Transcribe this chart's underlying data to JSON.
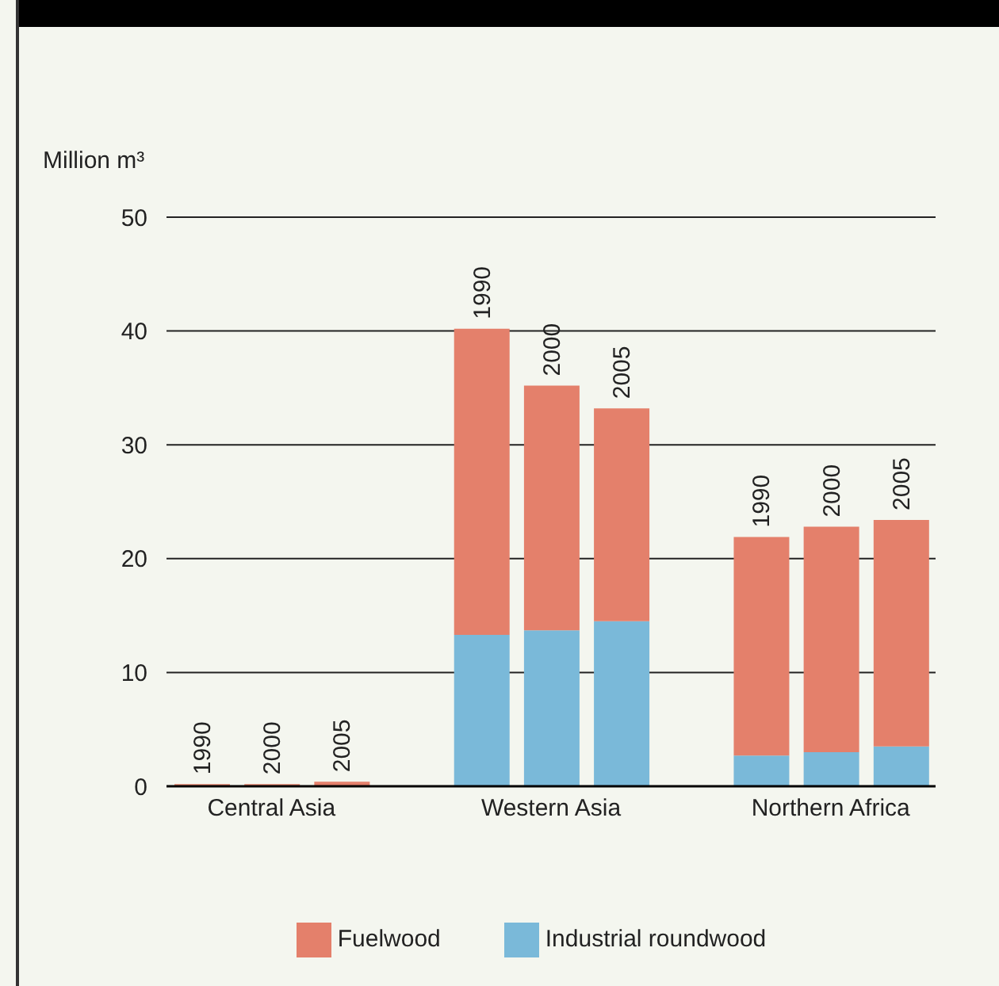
{
  "chart_data": {
    "type": "bar",
    "ylabel": "Million m³",
    "categories": [
      "1990",
      "2000",
      "2005",
      null,
      "1990",
      "2000",
      "2005",
      null,
      "1990",
      "2000",
      "2005"
    ],
    "annotations": [
      "Central Asia",
      "Western Asia",
      "Northern Africa"
    ],
    "series": [
      {
        "name": "Industrial roundwood",
        "color": "#7ab9d9",
        "values": [
          0,
          0,
          0,
          null,
          13.3,
          13.7,
          14.5,
          null,
          2.7,
          3.0,
          3.5
        ]
      },
      {
        "name": "Fuelwood",
        "color": "#e4806b",
        "values": [
          0.2,
          0.2,
          0.4,
          null,
          26.9,
          21.5,
          18.7,
          null,
          19.2,
          19.8,
          19.9
        ]
      }
    ],
    "stacked": true,
    "ylim": [
      0,
      50
    ],
    "yticks": [
      0,
      10,
      20,
      30,
      40,
      50
    ],
    "grid": "y",
    "legend": "bottom"
  }
}
